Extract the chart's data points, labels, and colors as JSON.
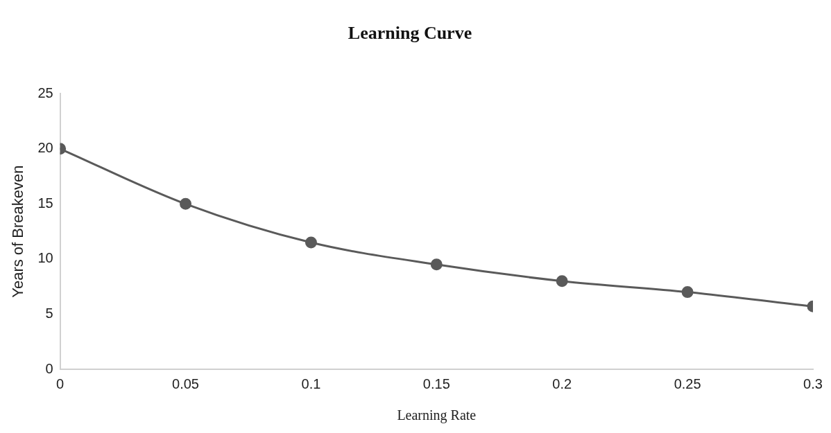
{
  "chart_data": {
    "type": "line",
    "title": "Learning Curve",
    "xlabel": "Learning Rate",
    "ylabel": "Years of Breakeven",
    "x": [
      0,
      0.05,
      0.1,
      0.15,
      0.2,
      0.25,
      0.3
    ],
    "series": [
      {
        "color": "#5a5a5a",
        "values": [
          20,
          15,
          11.5,
          9.5,
          8,
          7,
          5.7
        ]
      }
    ],
    "xlim": [
      0,
      0.3
    ],
    "xticks": [
      0,
      0.05,
      0.1,
      0.15,
      0.2,
      0.25,
      0.3
    ],
    "ylim": [
      0,
      25
    ],
    "yticks": [
      0,
      5,
      10,
      15,
      20,
      25
    ],
    "grid": false,
    "legend": false,
    "marker": "circle",
    "line_style": "solid"
  }
}
